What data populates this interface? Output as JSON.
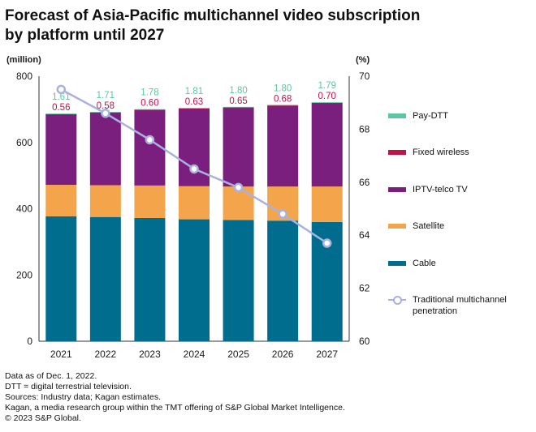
{
  "title_lines": [
    "Forecast of Asia-Pacific multichannel video subscription",
    "by platform until 2027"
  ],
  "notes": [
    "Data as of Dec. 1, 2022.",
    "DTT = digital terrestrial television.",
    "Sources: Industry data; Kagan estimates.",
    "Kagan, a media research group within the TMT offering of S&P Global Market Intelligence.",
    "© 2023 S&P Global."
  ],
  "chart_data": {
    "type": "bar",
    "stacked": true,
    "categories": [
      "2021",
      "2022",
      "2023",
      "2024",
      "2025",
      "2026",
      "2027"
    ],
    "left_axis": {
      "unit_label": "(million)",
      "min": 0,
      "max": 800,
      "ticks": [
        "0",
        "200",
        "400",
        "600",
        "800"
      ]
    },
    "right_axis": {
      "unit_label": "(%)",
      "min": 60,
      "max": 70,
      "ticks": [
        "60",
        "62",
        "64",
        "66",
        "68",
        "70"
      ]
    },
    "series": [
      {
        "name": "Cable",
        "color": "#006d8f",
        "values": [
          377,
          375,
          372,
          368,
          366,
          364,
          360
        ]
      },
      {
        "name": "Satellite",
        "color": "#f4a54b",
        "values": [
          95,
          96,
          98,
          100,
          101,
          103,
          107
        ]
      },
      {
        "name": "IPTV-telco TV",
        "color": "#7b1f7e",
        "values": [
          213,
          219,
          228,
          234,
          238,
          244,
          252
        ]
      },
      {
        "name": "Fixed wireless",
        "color": "#c0134a",
        "values": [
          0.56,
          0.58,
          0.6,
          0.63,
          0.65,
          0.68,
          0.7
        ]
      },
      {
        "name": "Pay-DTT",
        "color": "#5cc6a4",
        "values": [
          1.61,
          1.71,
          1.78,
          1.81,
          1.8,
          1.8,
          1.79
        ]
      }
    ],
    "data_labels": {
      "Pay-DTT": [
        "1.61",
        "1.71",
        "1.78",
        "1.81",
        "1.80",
        "1.80",
        "1.79"
      ],
      "Fixed wireless": [
        "0.56",
        "0.58",
        "0.60",
        "0.63",
        "0.65",
        "0.68",
        "0.70"
      ]
    },
    "line_series": {
      "name": "Traditional multichannel penetration",
      "axis": "right",
      "color": "#a9b2de",
      "values": [
        69.5,
        68.6,
        67.6,
        66.5,
        65.8,
        64.8,
        63.7
      ]
    },
    "legend": {
      "position": "right",
      "items": [
        "Pay-DTT",
        "Fixed wireless",
        "IPTV-telco TV",
        "Satellite",
        "Cable",
        "Traditional multichannel penetration"
      ]
    },
    "grid": false
  }
}
